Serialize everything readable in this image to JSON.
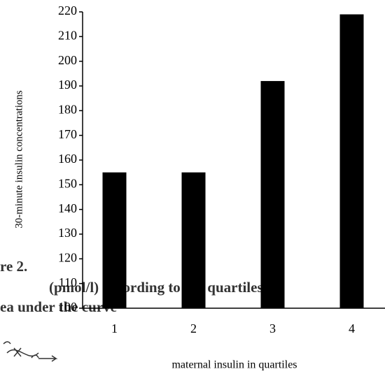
{
  "caption_fragments": [
    "re 2.",
    "(pmol/l) according to the quartiles of",
    "ea under the curve"
  ],
  "chart_data": {
    "type": "bar",
    "y_label": "30-minute insulin concentrations",
    "x_label": "maternal insulin in quartiles",
    "categories": [
      "1",
      "2",
      "3",
      "4"
    ],
    "values": [
      155,
      155,
      192,
      219
    ],
    "color": "#000000",
    "ylim": [
      100,
      220
    ],
    "yticks": [
      100,
      110,
      120,
      130,
      140,
      150,
      160,
      170,
      180,
      190,
      200,
      210,
      220
    ],
    "grid": false
  }
}
